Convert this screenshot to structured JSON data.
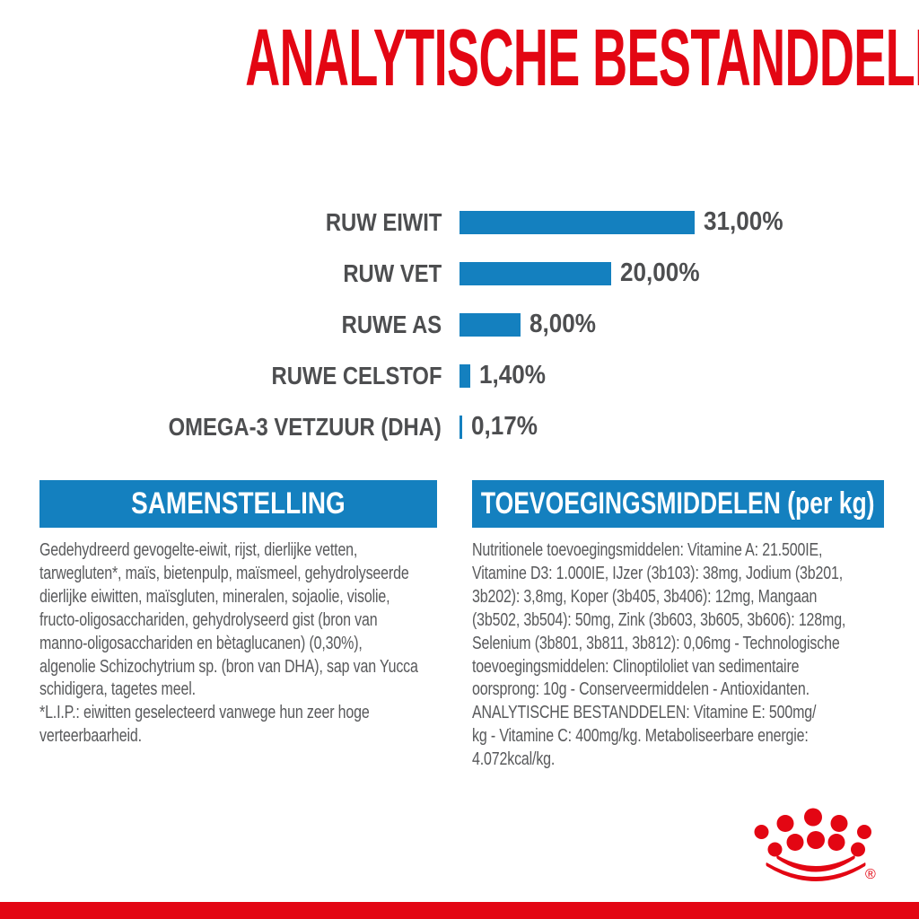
{
  "page": {
    "title": "ANALYTISCHE BESTANDDELEN"
  },
  "chart_data": {
    "type": "bar",
    "orientation": "horizontal",
    "categories": [
      "RUW EIWIT",
      "RUW VET",
      "RUWE AS",
      "RUWE CELSTOF",
      "OMEGA-3 VETZUUR (DHA)"
    ],
    "values": [
      31.0,
      20.0,
      8.0,
      1.4,
      0.17
    ],
    "value_labels": [
      "31,00%",
      "20,00%",
      "8,00%",
      "1,40%",
      "0,17%"
    ],
    "unit": "%",
    "xlim": [
      0,
      31
    ],
    "bar_color": "#1480bf",
    "grid": false,
    "legend": false
  },
  "sections": {
    "composition": {
      "header": "SAMENSTELLING",
      "body": "Gedehydreerd gevogelte-eiwit, rijst, dierlijke vetten,\ntarwegluten*, maïs, bietenpulp, maïsmeel, gehydrolyseerde\ndierlijke eiwitten, maïsgluten, mineralen, sojaolie, visolie,\nfructo-oligosacchariden, gehydrolyseerd gist (bron van\nmanno-oligosacchariden en bètaglucanen) (0,30%),\nalgenolie Schizochytrium sp. (bron van DHA), sap van Yucca\nschidigera, tagetes meel.\n*L.I.P.: eiwitten geselecteerd vanwege hun zeer hoge\nverteerbaarheid."
    },
    "additives": {
      "header": "TOEVOEGINGSMIDDELEN (per kg)",
      "body": "Nutritionele toevoegingsmiddelen: Vitamine A: 21.500IE,\nVitamine D3: 1.000IE, IJzer (3b103): 38mg, Jodium (3b201,\n3b202): 3,8mg, Koper (3b405, 3b406): 12mg, Mangaan\n(3b502, 3b504): 50mg, Zink (3b603, 3b605, 3b606): 128mg,\nSelenium (3b801, 3b811, 3b812): 0,06mg - Technologische\ntoevoegingsmiddelen: Clinoptiloliet van sedimentaire\noorsprong: 10g - Conserveermiddelen - Antioxidanten.\nANALYTISCHE BESTANDDELEN: Vitamine E: 500mg/\nkg - Vitamine C: 400mg/kg. Metaboliseerbare energie:\n4.072kcal/kg."
    }
  },
  "branding": {
    "logo": "royal-canin-crown",
    "trademark": "®"
  },
  "colors": {
    "red": "#e30613",
    "blue": "#1480bf",
    "chart_text_gray": "#4d4e50",
    "body_text_gray": "#58595b"
  }
}
